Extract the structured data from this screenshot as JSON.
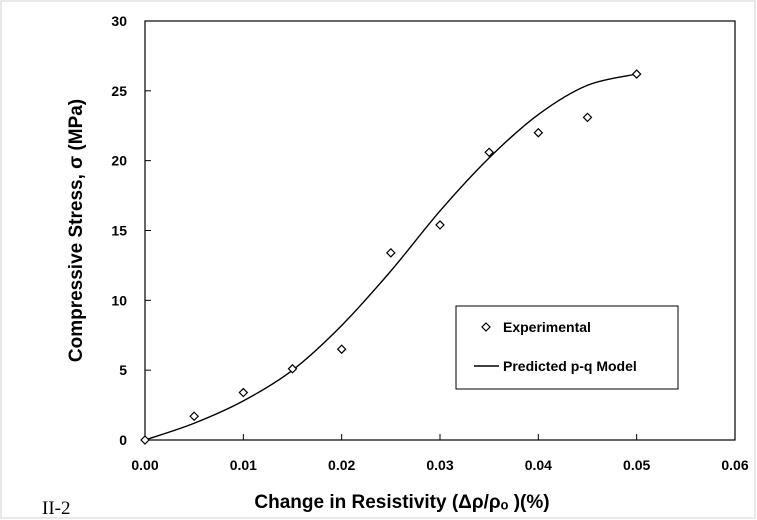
{
  "page_label": "II-2",
  "chart_data": {
    "type": "scatter",
    "title": "",
    "xlabel": "Change in Resistivity (Δρ/ρₒ )(%)",
    "ylabel": "Compressive Stress, σ (MPa)",
    "xlim": [
      0,
      0.06
    ],
    "ylim": [
      0,
      30
    ],
    "x_ticks": [
      "0.00",
      "0.01",
      "0.02",
      "0.03",
      "0.04",
      "0.05",
      "0.06"
    ],
    "y_ticks": [
      "0",
      "5",
      "10",
      "15",
      "20",
      "25",
      "30"
    ],
    "grid": false,
    "legend_position": "bottom-right",
    "series": [
      {
        "name": "Experimental",
        "kind": "scatter",
        "marker": "diamond",
        "x": [
          0.0,
          0.005,
          0.01,
          0.015,
          0.02,
          0.025,
          0.03,
          0.035,
          0.04,
          0.045,
          0.05
        ],
        "y": [
          0.0,
          1.7,
          3.4,
          5.1,
          6.5,
          13.4,
          15.4,
          20.6,
          22.0,
          23.1,
          26.2
        ]
      },
      {
        "name": "Predicted p-q Model",
        "kind": "line",
        "x": [
          0.0,
          0.005,
          0.01,
          0.015,
          0.02,
          0.025,
          0.03,
          0.035,
          0.04,
          0.045,
          0.05
        ],
        "y": [
          0.0,
          1.2,
          2.8,
          5.0,
          8.2,
          12.1,
          16.4,
          20.2,
          23.3,
          25.4,
          26.2
        ]
      }
    ]
  }
}
